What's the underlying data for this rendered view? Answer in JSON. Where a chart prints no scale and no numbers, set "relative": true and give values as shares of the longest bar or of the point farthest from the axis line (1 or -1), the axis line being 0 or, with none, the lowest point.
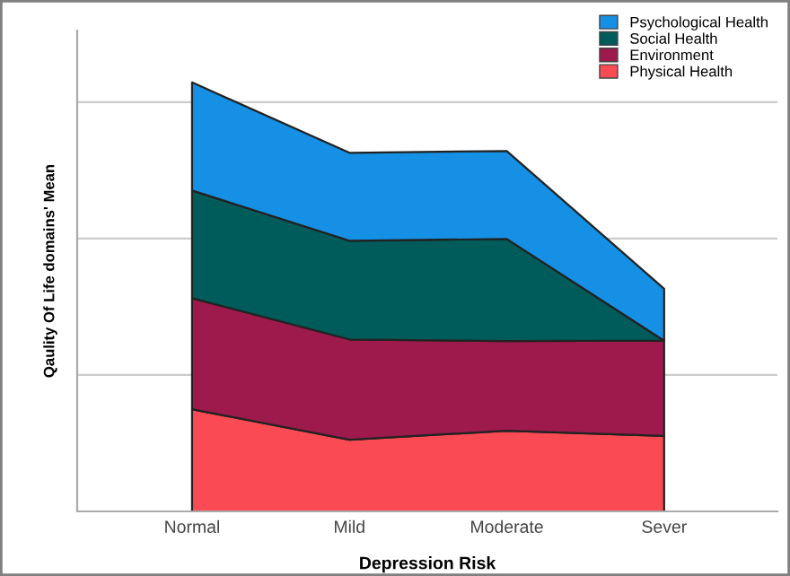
{
  "chart_data": {
    "type": "area",
    "stacked": true,
    "relative": true,
    "xlabel": "Depression Risk",
    "ylabel": "Qaulity Of Life domains' Mean",
    "categories": [
      "Normal",
      "Mild",
      "Moderate",
      "Sever"
    ],
    "series": [
      {
        "name": "Physical Health",
        "color": "#fa4b55",
        "values": [
          0.238,
          0.167,
          0.188,
          0.176
        ]
      },
      {
        "name": "Environment",
        "color": "#9e1a4d",
        "values": [
          0.259,
          0.234,
          0.209,
          0.222
        ]
      },
      {
        "name": "Social Health",
        "color": "#005c5a",
        "values": [
          0.251,
          0.23,
          0.238,
          0
        ]
      },
      {
        "name": "Psychological Health",
        "color": "#1590e4",
        "values": [
          0.252,
          0.205,
          0.205,
          0.121
        ]
      }
    ],
    "legend": "top right",
    "grid": "y"
  }
}
